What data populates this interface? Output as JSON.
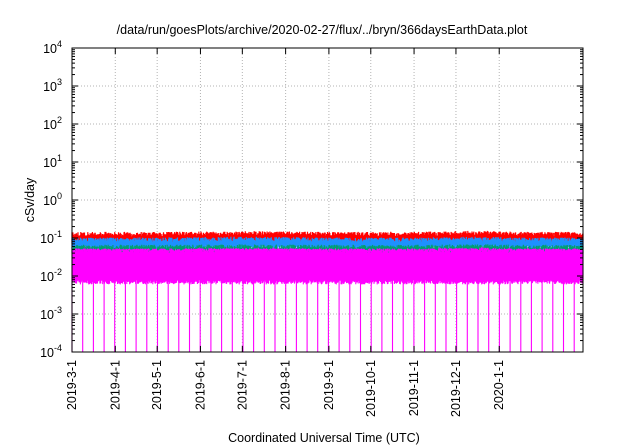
{
  "chart_data": {
    "type": "line",
    "title": "/data/run/goesPlots/archive/2020-02-27/flux/../bryn/366daysEarthData.plot",
    "xlabel": "Coordinated Universal Time (UTC)",
    "ylabel": "cSv/day",
    "yscale": "log",
    "ylim": [
      0.0001,
      10000
    ],
    "xlim": [
      "2019-03-01",
      "2020-03-01"
    ],
    "grid": true,
    "x_ticks": [
      "2019-3-1",
      "2019-4-1",
      "2019-5-1",
      "2019-6-1",
      "2019-7-1",
      "2019-8-1",
      "2019-9-1",
      "2019-10-1",
      "2019-11-1",
      "2019-12-1",
      "2020-1-1"
    ],
    "y_ticks": [
      {
        "value": 0.0001,
        "base": "10",
        "exp": "-4"
      },
      {
        "value": 0.001,
        "base": "10",
        "exp": "-3"
      },
      {
        "value": 0.01,
        "base": "10",
        "exp": "-2"
      },
      {
        "value": 0.1,
        "base": "10",
        "exp": "-1"
      },
      {
        "value": 1,
        "base": "10",
        "exp": "0"
      },
      {
        "value": 10,
        "base": "10",
        "exp": "1"
      },
      {
        "value": 100,
        "base": "10",
        "exp": "2"
      },
      {
        "value": 1000,
        "base": "10",
        "exp": "3"
      },
      {
        "value": 10000,
        "base": "10",
        "exp": "4"
      }
    ],
    "series": [
      {
        "color": "#ff0000",
        "x": [
          "2019-03-01",
          "2019-05-01",
          "2019-07-01",
          "2019-09-01",
          "2019-11-01",
          "2019-12-20",
          "2020-01-15",
          "2020-03-01"
        ],
        "y": [
          0.12,
          0.12,
          0.125,
          0.12,
          0.12,
          0.13,
          0.12,
          0.12
        ]
      },
      {
        "color": "#1e90ff",
        "x": [
          "2019-03-01",
          "2019-05-01",
          "2019-07-01",
          "2019-09-01",
          "2019-11-01",
          "2019-12-20",
          "2020-01-15",
          "2020-03-01"
        ],
        "y": [
          0.085,
          0.085,
          0.09,
          0.085,
          0.085,
          0.09,
          0.085,
          0.085
        ]
      },
      {
        "color": "#009e73",
        "x": [
          "2019-03-01",
          "2019-05-01",
          "2019-07-01",
          "2019-09-01",
          "2019-11-01",
          "2019-12-20",
          "2020-01-15",
          "2020-03-01"
        ],
        "y": [
          0.055,
          0.055,
          0.056,
          0.055,
          0.055,
          0.057,
          0.055,
          0.055
        ]
      },
      {
        "color": "#ff00ff",
        "x": [
          "2019-03-01",
          "2019-05-01",
          "2019-07-01",
          "2019-09-01",
          "2019-11-01",
          "2019-12-20",
          "2020-01-15",
          "2020-03-01"
        ],
        "y": [
          0.045,
          0.045,
          0.046,
          0.045,
          0.045,
          0.047,
          0.045,
          0.045
        ],
        "floor": 0.006,
        "dip_value": 0.0001
      }
    ]
  }
}
